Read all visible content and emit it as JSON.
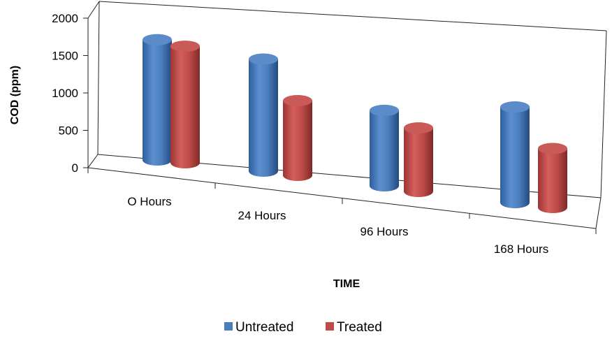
{
  "chart_data": {
    "type": "bar",
    "style": "3d-cylinder",
    "categories": [
      "O Hours",
      "24 Hours",
      "96 Hours",
      "168 Hours"
    ],
    "series": [
      {
        "name": "Untreated",
        "values": [
          1610,
          1500,
          1010,
          1280
        ]
      },
      {
        "name": "Treated",
        "values": [
          1560,
          1000,
          850,
          790
        ]
      }
    ],
    "xlabel": "TIME",
    "ylabel": "COD (ppm)",
    "ylim": [
      0,
      2000
    ],
    "yticks": [
      "0",
      "500",
      "1000",
      "1500",
      "2000"
    ],
    "grid": false,
    "legend_position": "bottom",
    "colors": {
      "Untreated": "#4a7ebb",
      "Treated": "#be4b48"
    }
  }
}
